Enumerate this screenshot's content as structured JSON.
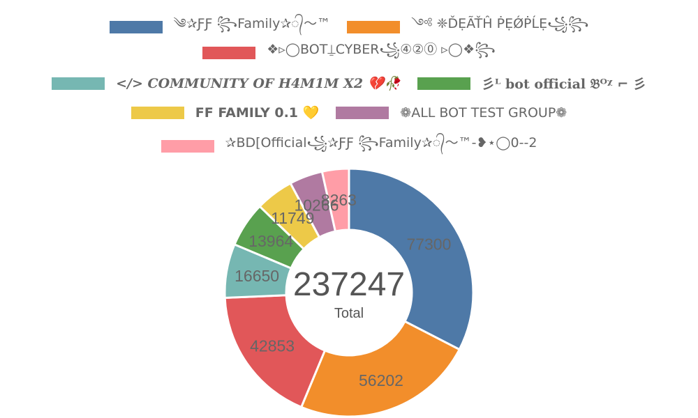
{
  "chart_data": {
    "type": "pie",
    "donut": true,
    "legend_position": "top",
    "series": [
      {
        "name": "༄✰ƑƑ ꧂Family✰᭄〜™",
        "value": 77300,
        "color": "#4e79a7"
      },
      {
        "name": "༺ ❈ĎẸÃŤĤ ṖẸǾṖĹẸ꧁꧂",
        "value": 56202,
        "color": "#f28e2b"
      },
      {
        "name": "❖▹◯BOT⍊CYBER꧁④②⓪ ▹◯❖꧂",
        "value": 42853,
        "color": "#e15759"
      },
      {
        "name": "</> COMMUNITY OF H4M1M X2 💔🥀",
        "value": 16650,
        "color": "#76b7b2"
      },
      {
        "name": "彡ᴸ bot official 𝔅ᴼᵡ ⌐ 彡",
        "value": 13964,
        "color": "#59a14f"
      },
      {
        "name": "FF FAMILY 0.1 💛",
        "value": 11749,
        "color": "#edc948"
      },
      {
        "name": "❁ALL BOT TEST GROUP❁",
        "value": 10266,
        "color": "#b07aa1"
      },
      {
        "name": "✰BD[Official꧁✰ƑƑ ꧂Family✰᭄〜™-❥⋆◯0--2",
        "value": 8263,
        "color": "#ff9da7"
      }
    ],
    "total": "237247",
    "total_label": "Total"
  }
}
